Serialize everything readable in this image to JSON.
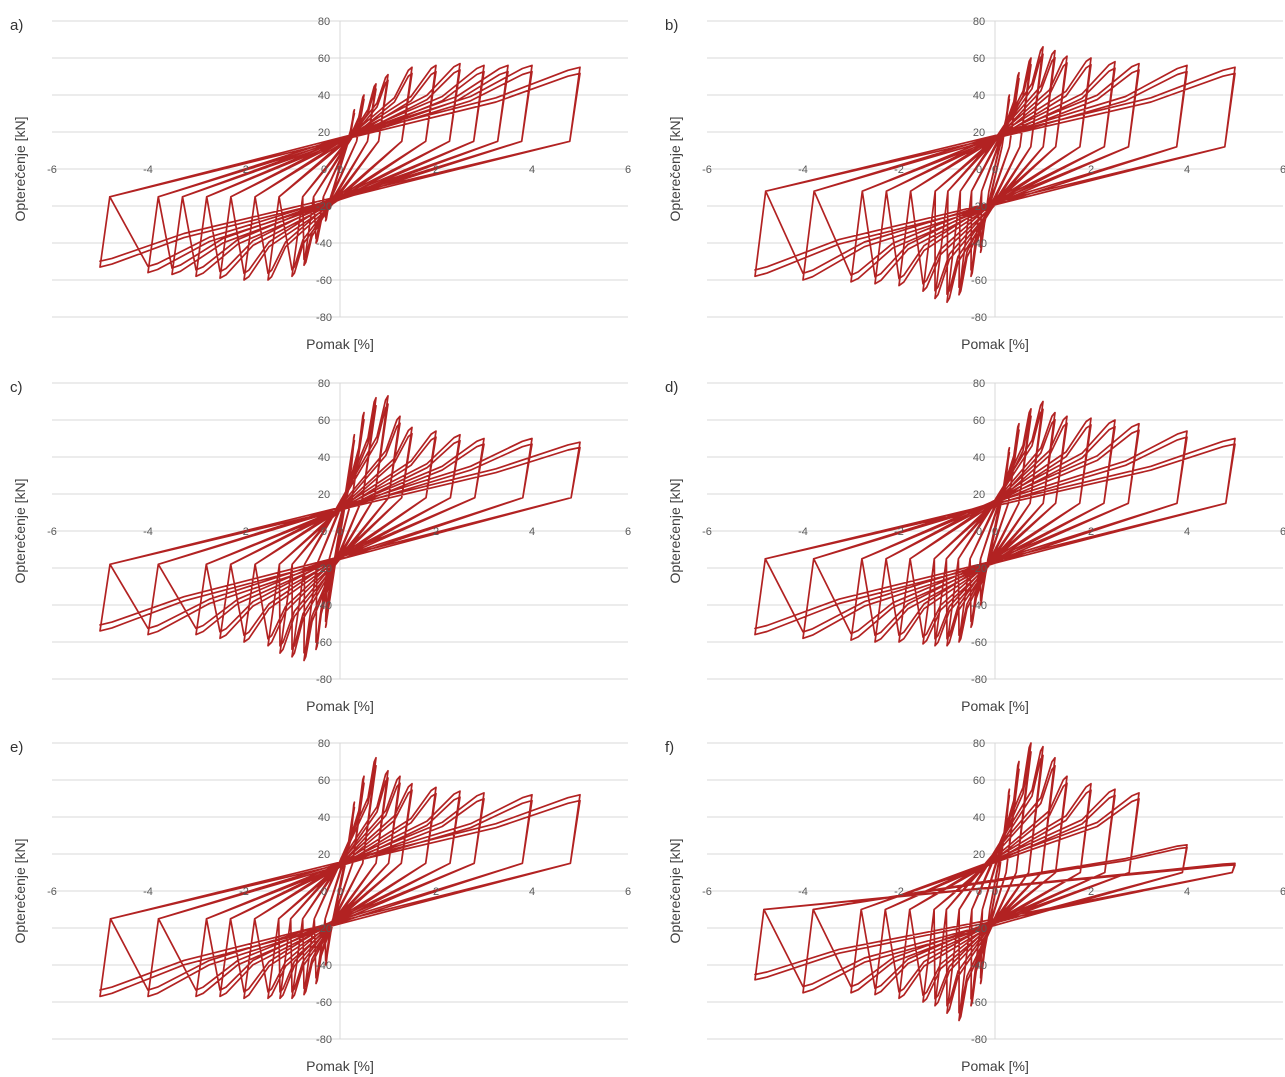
{
  "figure": {
    "panels": [
      "a)",
      "b)",
      "c)",
      "d)",
      "e)",
      "f)"
    ]
  },
  "chart_data": [
    {
      "type": "line",
      "panel_label": "a)",
      "xlabel": "Pomak [%]",
      "ylabel": "Opterečenje [kN]",
      "xlim": [
        -6,
        6
      ],
      "ylim": [
        -80,
        80
      ],
      "x_ticks": [
        "-6",
        "-4",
        "-2",
        "0",
        "2",
        "4",
        "6"
      ],
      "y_ticks": [
        "-80",
        "-60",
        "-40",
        "-20",
        "0",
        "20",
        "40",
        "60",
        "80"
      ],
      "grid": "horizontal",
      "color": "#b22222",
      "amplitudes": [
        0.3,
        0.5,
        0.75,
        1.0,
        1.5,
        2.0,
        2.5,
        3.0,
        3.5,
        4.0,
        5.0
      ],
      "peak_load_positive": [
        32,
        40,
        46,
        51,
        55,
        56,
        57,
        56,
        56,
        56,
        55
      ],
      "peak_load_negative": [
        -28,
        -40,
        -52,
        -58,
        -60,
        -60,
        -59,
        -58,
        -57,
        -56,
        -53
      ],
      "pinching_intercept": 15
    },
    {
      "type": "line",
      "panel_label": "b)",
      "xlabel": "Pomak [%]",
      "ylabel": "Opterečenje [kN]",
      "xlim": [
        -6,
        6
      ],
      "ylim": [
        -80,
        80
      ],
      "x_ticks": [
        "-6",
        "-4",
        "-2",
        "0",
        "2",
        "4",
        "6"
      ],
      "y_ticks": [
        "-80",
        "-60",
        "-40",
        "-20",
        "0",
        "20",
        "40",
        "60",
        "80"
      ],
      "grid": "horizontal",
      "color": "#b22222",
      "amplitudes": [
        0.3,
        0.5,
        0.75,
        1.0,
        1.25,
        1.5,
        2.0,
        2.5,
        3.0,
        4.0,
        5.0
      ],
      "peak_load_positive": [
        40,
        52,
        60,
        66,
        64,
        61,
        60,
        58,
        57,
        56,
        55
      ],
      "peak_load_negative": [
        -45,
        -58,
        -68,
        -72,
        -70,
        -66,
        -63,
        -62,
        -61,
        -60,
        -58
      ],
      "pinching_intercept": 12
    },
    {
      "type": "line",
      "panel_label": "c)",
      "xlabel": "Pomak [%]",
      "ylabel": "Opterečenje [kN]",
      "xlim": [
        -6,
        6
      ],
      "ylim": [
        -80,
        80
      ],
      "x_ticks": [
        "-6",
        "-4",
        "-2",
        "0",
        "2",
        "4",
        "6"
      ],
      "y_ticks": [
        "-80",
        "-60",
        "-40",
        "-20",
        "0",
        "20",
        "40",
        "60",
        "80"
      ],
      "grid": "horizontal",
      "color": "#b22222",
      "amplitudes": [
        0.3,
        0.5,
        0.75,
        1.0,
        1.25,
        1.5,
        2.0,
        2.5,
        3.0,
        4.0,
        5.0
      ],
      "peak_load_positive": [
        52,
        64,
        72,
        73,
        62,
        56,
        54,
        52,
        50,
        50,
        48
      ],
      "peak_load_negative": [
        -52,
        -64,
        -70,
        -68,
        -66,
        -62,
        -60,
        -58,
        -56,
        -56,
        -54
      ],
      "pinching_intercept": 18
    },
    {
      "type": "line",
      "panel_label": "d)",
      "xlabel": "Pomak [%]",
      "ylabel": "Opterečenje [kN]",
      "xlim": [
        -6,
        6
      ],
      "ylim": [
        -80,
        80
      ],
      "x_ticks": [
        "-6",
        "-4",
        "-2",
        "0",
        "2",
        "4",
        "6"
      ],
      "y_ticks": [
        "-80",
        "-60",
        "-40",
        "-20",
        "0",
        "20",
        "40",
        "60",
        "80"
      ],
      "grid": "horizontal",
      "color": "#b22222",
      "amplitudes": [
        0.3,
        0.5,
        0.75,
        1.0,
        1.25,
        1.5,
        2.0,
        2.5,
        3.0,
        4.0,
        5.0
      ],
      "peak_load_positive": [
        45,
        58,
        66,
        70,
        64,
        62,
        61,
        60,
        58,
        54,
        50
      ],
      "peak_load_negative": [
        -40,
        -52,
        -60,
        -62,
        -62,
        -61,
        -60,
        -60,
        -59,
        -58,
        -56
      ],
      "pinching_intercept": 15
    },
    {
      "type": "line",
      "panel_label": "e)",
      "xlabel": "Pomak [%]",
      "ylabel": "Opterečenje [kN]",
      "xlim": [
        -6,
        6
      ],
      "ylim": [
        -80,
        80
      ],
      "x_ticks": [
        "-6",
        "-4",
        "-2",
        "0",
        "2",
        "4",
        "6"
      ],
      "y_ticks": [
        "-80",
        "-60",
        "-40",
        "-20",
        "0",
        "20",
        "40",
        "60",
        "80"
      ],
      "grid": "horizontal",
      "color": "#b22222",
      "amplitudes": [
        0.3,
        0.5,
        0.75,
        1.0,
        1.25,
        1.5,
        2.0,
        2.5,
        3.0,
        4.0,
        5.0
      ],
      "peak_load_positive": [
        48,
        62,
        72,
        65,
        62,
        58,
        56,
        54,
        53,
        52,
        52
      ],
      "peak_load_negative": [
        -40,
        -50,
        -56,
        -58,
        -58,
        -58,
        -58,
        -57,
        -57,
        -57,
        -57
      ],
      "pinching_intercept": 15
    },
    {
      "type": "line",
      "panel_label": "f)",
      "xlabel": "Pomak [%]",
      "ylabel": "Opterečenje [kN]",
      "xlim": [
        -6,
        6
      ],
      "ylim": [
        -80,
        80
      ],
      "x_ticks": [
        "-6",
        "-4",
        "-2",
        "0",
        "2",
        "4",
        "6"
      ],
      "y_ticks": [
        "-80",
        "-60",
        "-40",
        "-20",
        "0",
        "20",
        "40",
        "60",
        "80"
      ],
      "grid": "horizontal",
      "color": "#b22222",
      "amplitudes": [
        0.3,
        0.5,
        0.75,
        1.0,
        1.25,
        1.5,
        2.0,
        2.5,
        3.0,
        4.0,
        5.0
      ],
      "peak_load_positive": [
        55,
        70,
        80,
        78,
        72,
        62,
        58,
        55,
        53,
        25,
        15
      ],
      "peak_load_negative": [
        -50,
        -62,
        -70,
        -66,
        -62,
        -60,
        -58,
        -56,
        -55,
        -55,
        -48
      ],
      "pinching_intercept": 10
    }
  ]
}
